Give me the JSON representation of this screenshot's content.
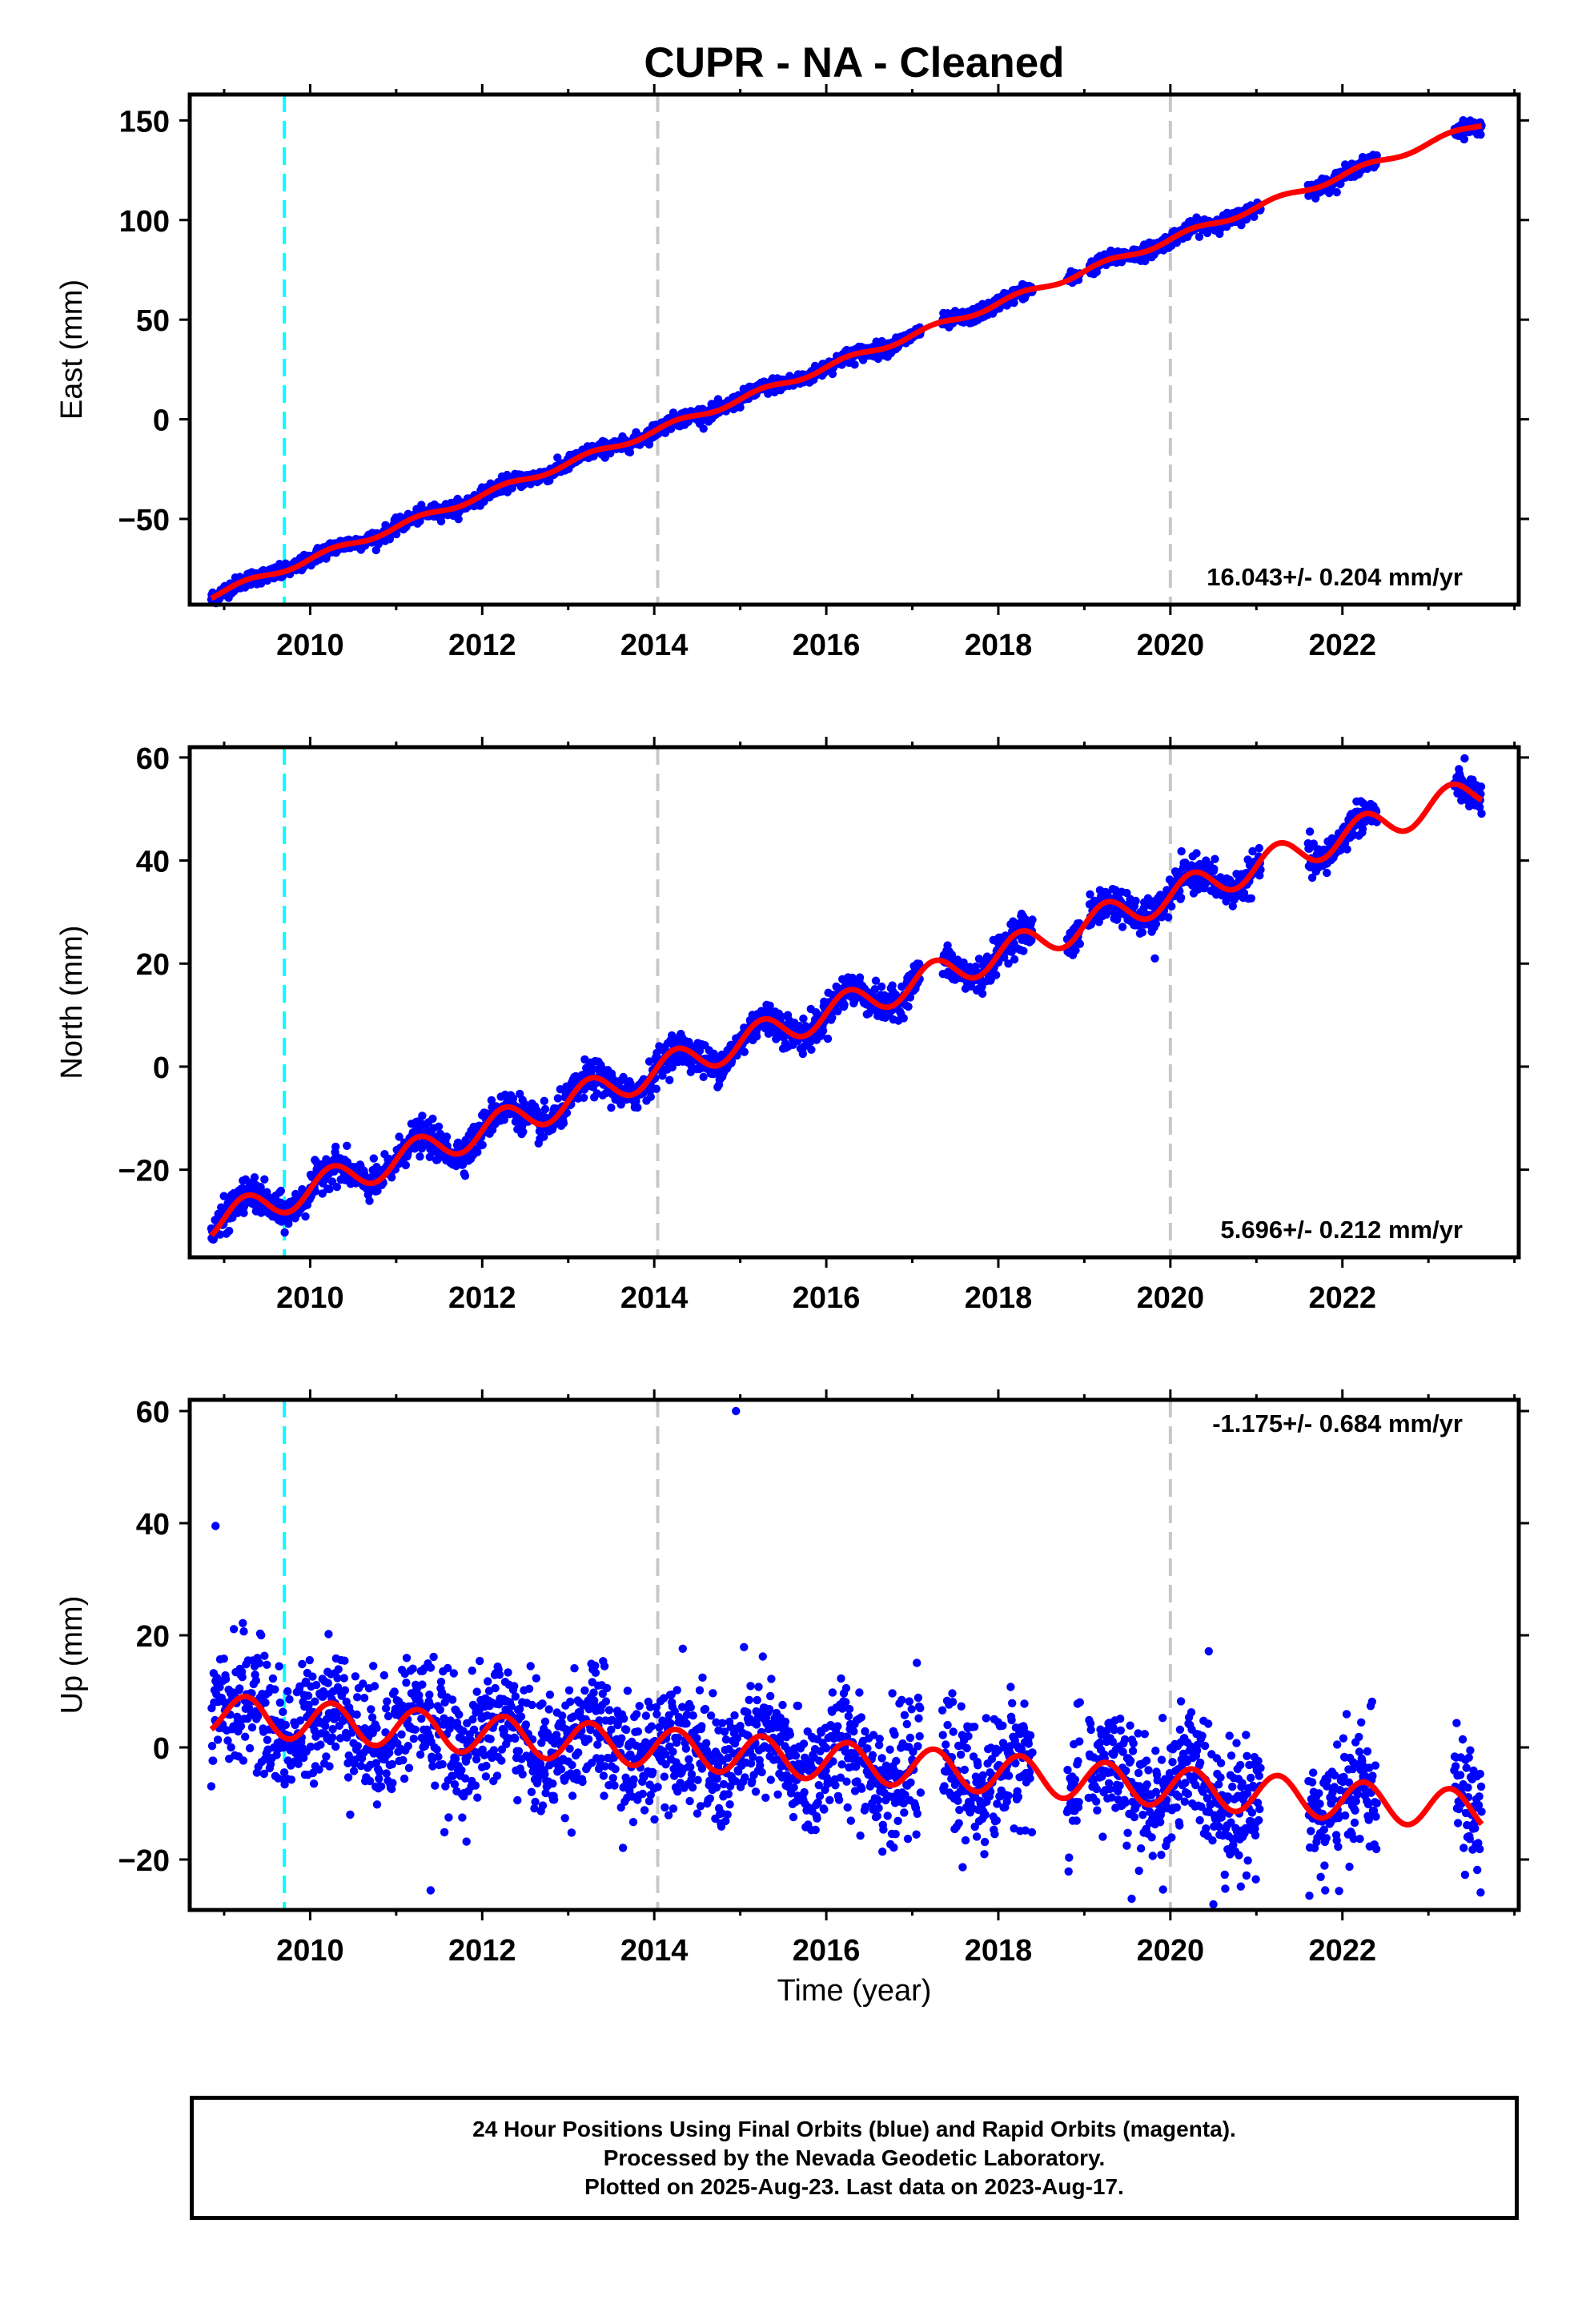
{
  "page": {
    "title": "CUPR  - NA - Cleaned",
    "xlabel": "Time (year)"
  },
  "colors": {
    "data_points": "#0000ff",
    "model_fit": "#ff0000",
    "equipment_change_line": "#00ffff",
    "grid_marker_line": "#c8c8c8",
    "axis": "#000000"
  },
  "footer": {
    "line1": "24 Hour Positions Using Final Orbits (blue) and Rapid Orbits (magenta).",
    "line2": "Processed by the Nevada Geodetic Laboratory.",
    "line3": "Plotted on 2025-Aug-23. Last data on 2023-Aug-17."
  },
  "chart_data": [
    {
      "type": "scatter",
      "component": "East",
      "ylabel": "East (mm)",
      "xlim": [
        2008.6,
        2024.05
      ],
      "ylim": [
        -93,
        163
      ],
      "xticks": [
        2010,
        2012,
        2014,
        2016,
        2018,
        2020,
        2022
      ],
      "yticks": [
        -50,
        0,
        50,
        100,
        150
      ],
      "rate_label": "16.043+/- 0.204 mm/yr",
      "rate_position": "bottom-right",
      "vertical_markers": [
        {
          "x": 2009.7,
          "kind": "equipment-change",
          "color": "#00ffff"
        },
        {
          "x": 2014.04,
          "kind": "reference",
          "color": "#c8c8c8"
        },
        {
          "x": 2020.0,
          "kind": "reference",
          "color": "#c8c8c8"
        }
      ],
      "data_periods": [
        [
          2008.85,
          2017.1
        ],
        [
          2017.35,
          2018.4
        ],
        [
          2018.8,
          2018.95
        ],
        [
          2019.05,
          2021.05
        ],
        [
          2021.6,
          2022.4
        ],
        [
          2023.3,
          2023.62
        ]
      ],
      "trend": {
        "slope": 16.043,
        "ref_year": 2014.0,
        "intercept": -6,
        "annual_amp": 1.5
      },
      "scatter_noise_mm": 1.8,
      "outliers": [],
      "model_fit_start": 2008.85,
      "model_fit_end": 2023.62
    },
    {
      "type": "scatter",
      "component": "North",
      "ylabel": "North (mm)",
      "xlim": [
        2008.6,
        2024.05
      ],
      "ylim": [
        -37,
        62
      ],
      "xticks": [
        2010,
        2012,
        2014,
        2016,
        2018,
        2020,
        2022
      ],
      "yticks": [
        -20,
        0,
        20,
        40,
        60
      ],
      "rate_label": "5.696+/- 0.212 mm/yr",
      "rate_position": "bottom-right",
      "vertical_markers": [
        {
          "x": 2009.7,
          "kind": "equipment-change",
          "color": "#00ffff"
        },
        {
          "x": 2014.04,
          "kind": "reference",
          "color": "#c8c8c8"
        },
        {
          "x": 2020.0,
          "kind": "reference",
          "color": "#c8c8c8"
        }
      ],
      "data_periods": [
        [
          2008.85,
          2017.1
        ],
        [
          2017.35,
          2018.4
        ],
        [
          2018.8,
          2018.95
        ],
        [
          2019.05,
          2021.05
        ],
        [
          2021.6,
          2022.4
        ],
        [
          2023.3,
          2023.62
        ]
      ],
      "trend": {
        "slope": 5.696,
        "ref_year": 2014.0,
        "intercept": -1,
        "annual_amp": 3.0
      },
      "scatter_noise_mm": 1.6,
      "outliers": [
        {
          "x": 2019.82,
          "y": 21
        }
      ],
      "model_fit_start": 2008.85,
      "model_fit_end": 2023.62
    },
    {
      "type": "scatter",
      "component": "Up",
      "ylabel": "Up (mm)",
      "xlim": [
        2008.6,
        2024.05
      ],
      "ylim": [
        -29,
        62
      ],
      "xticks": [
        2010,
        2012,
        2014,
        2016,
        2018,
        2020,
        2022
      ],
      "yticks": [
        -20,
        0,
        20,
        40,
        60
      ],
      "rate_label": "-1.175+/- 0.684 mm/yr",
      "rate_position": "top-right",
      "vertical_markers": [
        {
          "x": 2009.7,
          "kind": "equipment-change",
          "color": "#00ffff"
        },
        {
          "x": 2014.04,
          "kind": "reference",
          "color": "#c8c8c8"
        },
        {
          "x": 2020.0,
          "kind": "reference",
          "color": "#c8c8c8"
        }
      ],
      "data_periods": [
        [
          2008.85,
          2017.1
        ],
        [
          2017.35,
          2018.4
        ],
        [
          2018.8,
          2018.95
        ],
        [
          2019.05,
          2021.05
        ],
        [
          2021.6,
          2022.4
        ],
        [
          2023.3,
          2023.62
        ]
      ],
      "trend": {
        "slope": -1.175,
        "ref_year": 2014.0,
        "intercept": 0,
        "annual_amp": 3.5
      },
      "scatter_noise_mm": 5.5,
      "outliers": [
        {
          "x": 2008.9,
          "y": 39.5
        },
        {
          "x": 2014.95,
          "y": 60
        },
        {
          "x": 2011.4,
          "y": -25.5
        },
        {
          "x": 2020.5,
          "y": -28
        },
        {
          "x": 2019.55,
          "y": -27
        },
        {
          "x": 2021.8,
          "y": -25.5
        }
      ],
      "model_fit_start": 2008.85,
      "model_fit_end": 2023.62
    }
  ]
}
